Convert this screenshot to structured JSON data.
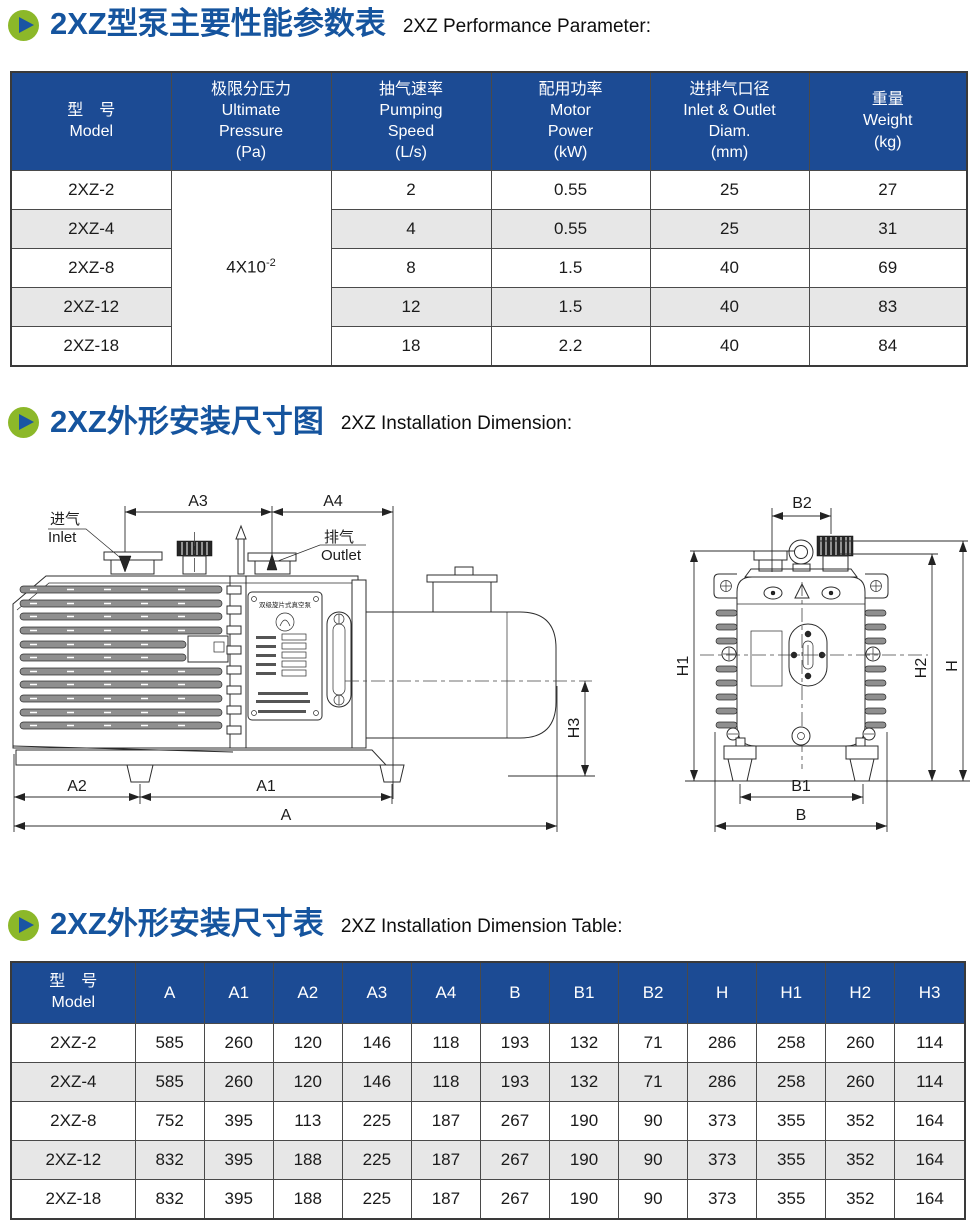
{
  "sections": {
    "performance": {
      "title_zh": "2XZ型泵主要性能参数表",
      "title_en": "2XZ Performance Parameter:"
    },
    "installation": {
      "title_zh": "2XZ外形安装尺寸图",
      "title_en": "2XZ Installation Dimension:"
    },
    "dimension": {
      "title_zh": "2XZ外形安装尺寸表",
      "title_en": "2XZ Installation Dimension Table:"
    }
  },
  "perf_table": {
    "headers": {
      "model": [
        "型　号",
        "Model"
      ],
      "pressure": [
        "极限分压力",
        "Ultimate",
        "Pressure",
        "(Pa)"
      ],
      "speed": [
        "抽气速率",
        "Pumping",
        "Speed",
        "(L/s)"
      ],
      "power": [
        "配用功率",
        "Motor",
        "Power",
        "(kW)"
      ],
      "diam": [
        "进排气口径",
        "Inlet & Outlet",
        "Diam.",
        "(mm)"
      ],
      "weight": [
        "重量",
        "Weight",
        "(kg)"
      ]
    },
    "pressure_value": {
      "base": "4X10",
      "exp": "-2"
    },
    "rows": [
      [
        "2XZ-2",
        "2",
        "0.55",
        "25",
        "27"
      ],
      [
        "2XZ-4",
        "4",
        "0.55",
        "25",
        "31"
      ],
      [
        "2XZ-8",
        "8",
        "1.5",
        "40",
        "69"
      ],
      [
        "2XZ-12",
        "12",
        "1.5",
        "40",
        "83"
      ],
      [
        "2XZ-18",
        "18",
        "2.2",
        "40",
        "84"
      ]
    ]
  },
  "drawing": {
    "inlet_zh": "进气",
    "inlet_en": "Inlet",
    "outlet_zh": "排气",
    "outlet_en": "Outlet",
    "nameplate_title": "双级旋片式真空泵",
    "dims": {
      "a3": "A3",
      "a4": "A4",
      "a2": "A2",
      "a1": "A1",
      "a": "A",
      "h3": "H3",
      "b2": "B2",
      "h1": "H1",
      "h2": "H2",
      "h": "H",
      "b1": "B1",
      "b": "B"
    }
  },
  "dim_table": {
    "model_header": [
      "型　号",
      "Model"
    ],
    "headers": [
      "A",
      "A1",
      "A2",
      "A3",
      "A4",
      "B",
      "B1",
      "B2",
      "H",
      "H1",
      "H2",
      "H3"
    ],
    "rows": [
      [
        "2XZ-2",
        "585",
        "260",
        "120",
        "146",
        "118",
        "193",
        "132",
        "71",
        "286",
        "258",
        "260",
        "114"
      ],
      [
        "2XZ-4",
        "585",
        "260",
        "120",
        "146",
        "118",
        "193",
        "132",
        "71",
        "286",
        "258",
        "260",
        "114"
      ],
      [
        "2XZ-8",
        "752",
        "395",
        "113",
        "225",
        "187",
        "267",
        "190",
        "90",
        "373",
        "355",
        "352",
        "164"
      ],
      [
        "2XZ-12",
        "832",
        "395",
        "188",
        "225",
        "187",
        "267",
        "190",
        "90",
        "373",
        "355",
        "352",
        "164"
      ],
      [
        "2XZ-18",
        "832",
        "395",
        "188",
        "225",
        "187",
        "267",
        "190",
        "90",
        "373",
        "355",
        "352",
        "164"
      ]
    ]
  },
  "colors": {
    "accent_blue": "#15549e",
    "header_bg": "#1c4b94",
    "icon_green": "#8cb829",
    "row_alt": "#e7e7e7"
  }
}
